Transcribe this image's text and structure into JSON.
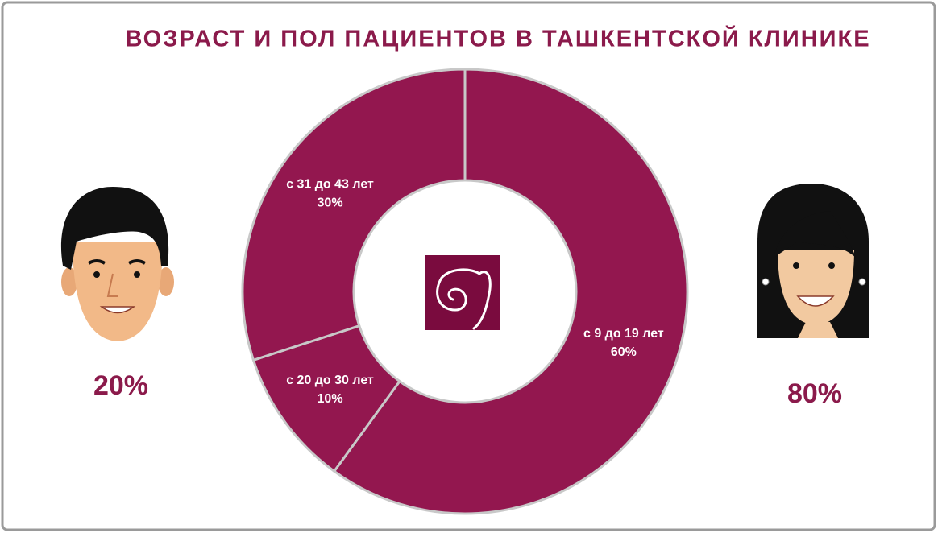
{
  "chart_data": {
    "type": "donut",
    "title": "ВОЗРАСТ И ПОЛ ПАЦИЕНТОВ В ТАШКЕНТСКОЙ КЛИНИКЕ",
    "categories": [
      "с 9 до 19 лет",
      "с 20 до 30 лет",
      "с 31 до 43 лет"
    ],
    "values": [
      60,
      10,
      30
    ],
    "value_labels": [
      "60%",
      "10%",
      "30%"
    ],
    "color": "#93174f",
    "gender_values": [
      20,
      80
    ],
    "gender_value_labels": [
      "20%",
      "80%"
    ]
  }
}
